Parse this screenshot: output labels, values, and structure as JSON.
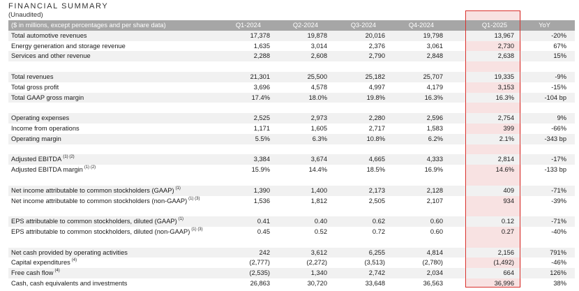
{
  "header": {
    "title": "FINANCIAL SUMMARY",
    "subtitle": "(Unaudited)"
  },
  "table": {
    "columns": {
      "label": "($ in millions, except percentages and per share data)",
      "q1_2024": "Q1-2024",
      "q2_2024": "Q2-2024",
      "q3_2024": "Q3-2024",
      "q4_2024": "Q4-2024",
      "q1_2025": "Q1-2025",
      "yoy": "YoY"
    },
    "rows": [
      {
        "label": "Total automotive revenues",
        "sup": "",
        "values": [
          "17,378",
          "19,878",
          "20,016",
          "19,798",
          "13,967",
          "-20%"
        ]
      },
      {
        "label": "Energy generation and storage revenue",
        "sup": "",
        "values": [
          "1,635",
          "3,014",
          "2,376",
          "3,061",
          "2,730",
          "67%"
        ]
      },
      {
        "label": "Services and other revenue",
        "sup": "",
        "values": [
          "2,288",
          "2,608",
          "2,790",
          "2,848",
          "2,638",
          "15%"
        ]
      },
      {
        "label": "Total revenues",
        "sup": "",
        "values": [
          "21,301",
          "25,500",
          "25,182",
          "25,707",
          "19,335",
          "-9%"
        ]
      },
      {
        "label": "Total gross profit",
        "sup": "",
        "values": [
          "3,696",
          "4,578",
          "4,997",
          "4,179",
          "3,153",
          "-15%"
        ]
      },
      {
        "label": "Total GAAP gross margin",
        "sup": "",
        "values": [
          "17.4%",
          "18.0%",
          "19.8%",
          "16.3%",
          "16.3%",
          "-104 bp"
        ]
      },
      {
        "label": "Operating expenses",
        "sup": "",
        "values": [
          "2,525",
          "2,973",
          "2,280",
          "2,596",
          "2,754",
          "9%"
        ]
      },
      {
        "label": "Income from operations",
        "sup": "",
        "values": [
          "1,171",
          "1,605",
          "2,717",
          "1,583",
          "399",
          "-66%"
        ]
      },
      {
        "label": "Operating margin",
        "sup": "",
        "values": [
          "5.5%",
          "6.3%",
          "10.8%",
          "6.2%",
          "2.1%",
          "-343 bp"
        ]
      },
      {
        "label": "Adjusted EBITDA",
        "sup": "(1) (2)",
        "values": [
          "3,384",
          "3,674",
          "4,665",
          "4,333",
          "2,814",
          "-17%"
        ]
      },
      {
        "label": "Adjusted EBITDA margin",
        "sup": "(1) (2)",
        "values": [
          "15.9%",
          "14.4%",
          "18.5%",
          "16.9%",
          "14.6%",
          "-133 bp"
        ]
      },
      {
        "label": "Net income attributable to common stockholders (GAAP)",
        "sup": "(1)",
        "values": [
          "1,390",
          "1,400",
          "2,173",
          "2,128",
          "409",
          "-71%"
        ]
      },
      {
        "label": "Net income attributable to common stockholders (non-GAAP)",
        "sup": "(1) (3)",
        "values": [
          "1,536",
          "1,812",
          "2,505",
          "2,107",
          "934",
          "-39%"
        ]
      },
      {
        "label": "EPS attributable to common stockholders, diluted (GAAP)",
        "sup": "(1)",
        "values": [
          "0.41",
          "0.40",
          "0.62",
          "0.60",
          "0.12",
          "-71%"
        ]
      },
      {
        "label": "EPS attributable to common stockholders, diluted (non-GAAP)",
        "sup": "(1) (3)",
        "values": [
          "0.45",
          "0.52",
          "0.72",
          "0.60",
          "0.27",
          "-40%"
        ]
      },
      {
        "label": "Net cash provided by operating activities",
        "sup": "",
        "values": [
          "242",
          "3,612",
          "6,255",
          "4,814",
          "2,156",
          "791%"
        ]
      },
      {
        "label": "Capital expenditures",
        "sup": "(4)",
        "values": [
          "(2,777)",
          "(2,272)",
          "(3,513)",
          "(2,780)",
          "(1,492)",
          "-46%"
        ]
      },
      {
        "label": "Free cash flow",
        "sup": "(4)",
        "values": [
          "(2,535)",
          "1,340",
          "2,742",
          "2,034",
          "664",
          "126%"
        ]
      },
      {
        "label": "Cash, cash equivalents and investments",
        "sup": "",
        "values": [
          "26,863",
          "30,720",
          "33,648",
          "36,563",
          "36,996",
          "38%"
        ]
      }
    ]
  },
  "colors": {
    "header_bg": "#a6a6a6",
    "row_shade": "#f1f1f1",
    "highlight_box": "#d9302c",
    "highlight_fill": "#f2cbcb"
  }
}
